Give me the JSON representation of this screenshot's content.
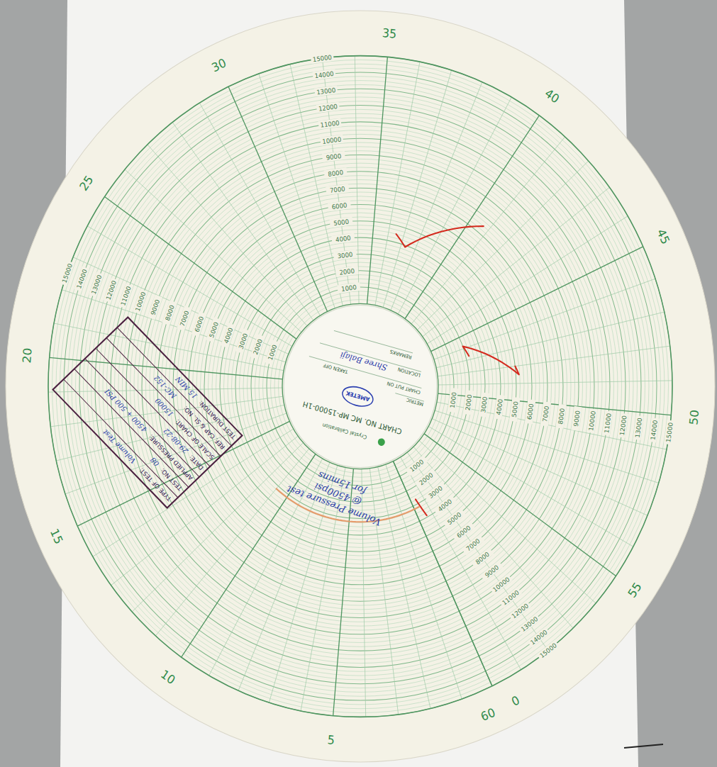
{
  "chart_data": {
    "type": "polar",
    "title": "CHART NO. MC MP-15000-1H",
    "xlim": [
      0,
      60
    ],
    "xticks": [
      0,
      5,
      10,
      15,
      20,
      25,
      30,
      35,
      40,
      45,
      50,
      55,
      60
    ],
    "ylim": [
      0,
      15000
    ],
    "yticks": [
      1000,
      2000,
      3000,
      4000,
      5000,
      6000,
      7000,
      8000,
      9000,
      10000,
      11000,
      12000,
      13000,
      14000,
      15000
    ],
    "grid": true,
    "tick_labels": true,
    "series": [
      {
        "color": "#d42a1e",
        "x": [
          36.5,
          37.3,
          40.7,
          null,
          46.7,
          45.8,
          48.5,
          48.0,
          null,
          59.6,
          59.4
        ],
        "values": [
          4500,
          3900,
          7500,
          null,
          2200,
          2000,
          5200,
          5000,
          null,
          2700,
          3900
        ]
      },
      {
        "color": "#e79a6a",
        "x": [
          59.6,
          60,
          null,
          0,
          3,
          6,
          9,
          11
        ],
        "values": [
          3200,
          3200,
          null,
          3200,
          3200,
          3200,
          3200,
          3200
        ]
      }
    ]
  },
  "hub": {
    "brand": "Crystal Calibration",
    "logo": "AMETEK",
    "metric": "METRIC",
    "fields": [
      "CHART PUT ON",
      "TAKEN OFF",
      "LOCATION",
      "REMARKS"
    ],
    "handwritten": "Shree Balaji"
  },
  "note": [
    "Volume Pressure test",
    "@ 4500psi",
    "for 15mins"
  ],
  "stamp": {
    "rows": [
      [
        "TYPE OF TEST:",
        "Volume Test"
      ],
      [
        "TEST NO:",
        "08"
      ],
      [
        "APPLIED PRESSURE:",
        "4500 + 500 PSI"
      ],
      [
        "DATE:",
        "29-08-22"
      ],
      [
        "SCALE OF CHART:",
        "15000"
      ],
      [
        "REF. CAP & SL. NO:",
        "MC-152"
      ],
      [
        "TEST DURATION:",
        "15 MIN"
      ]
    ]
  }
}
